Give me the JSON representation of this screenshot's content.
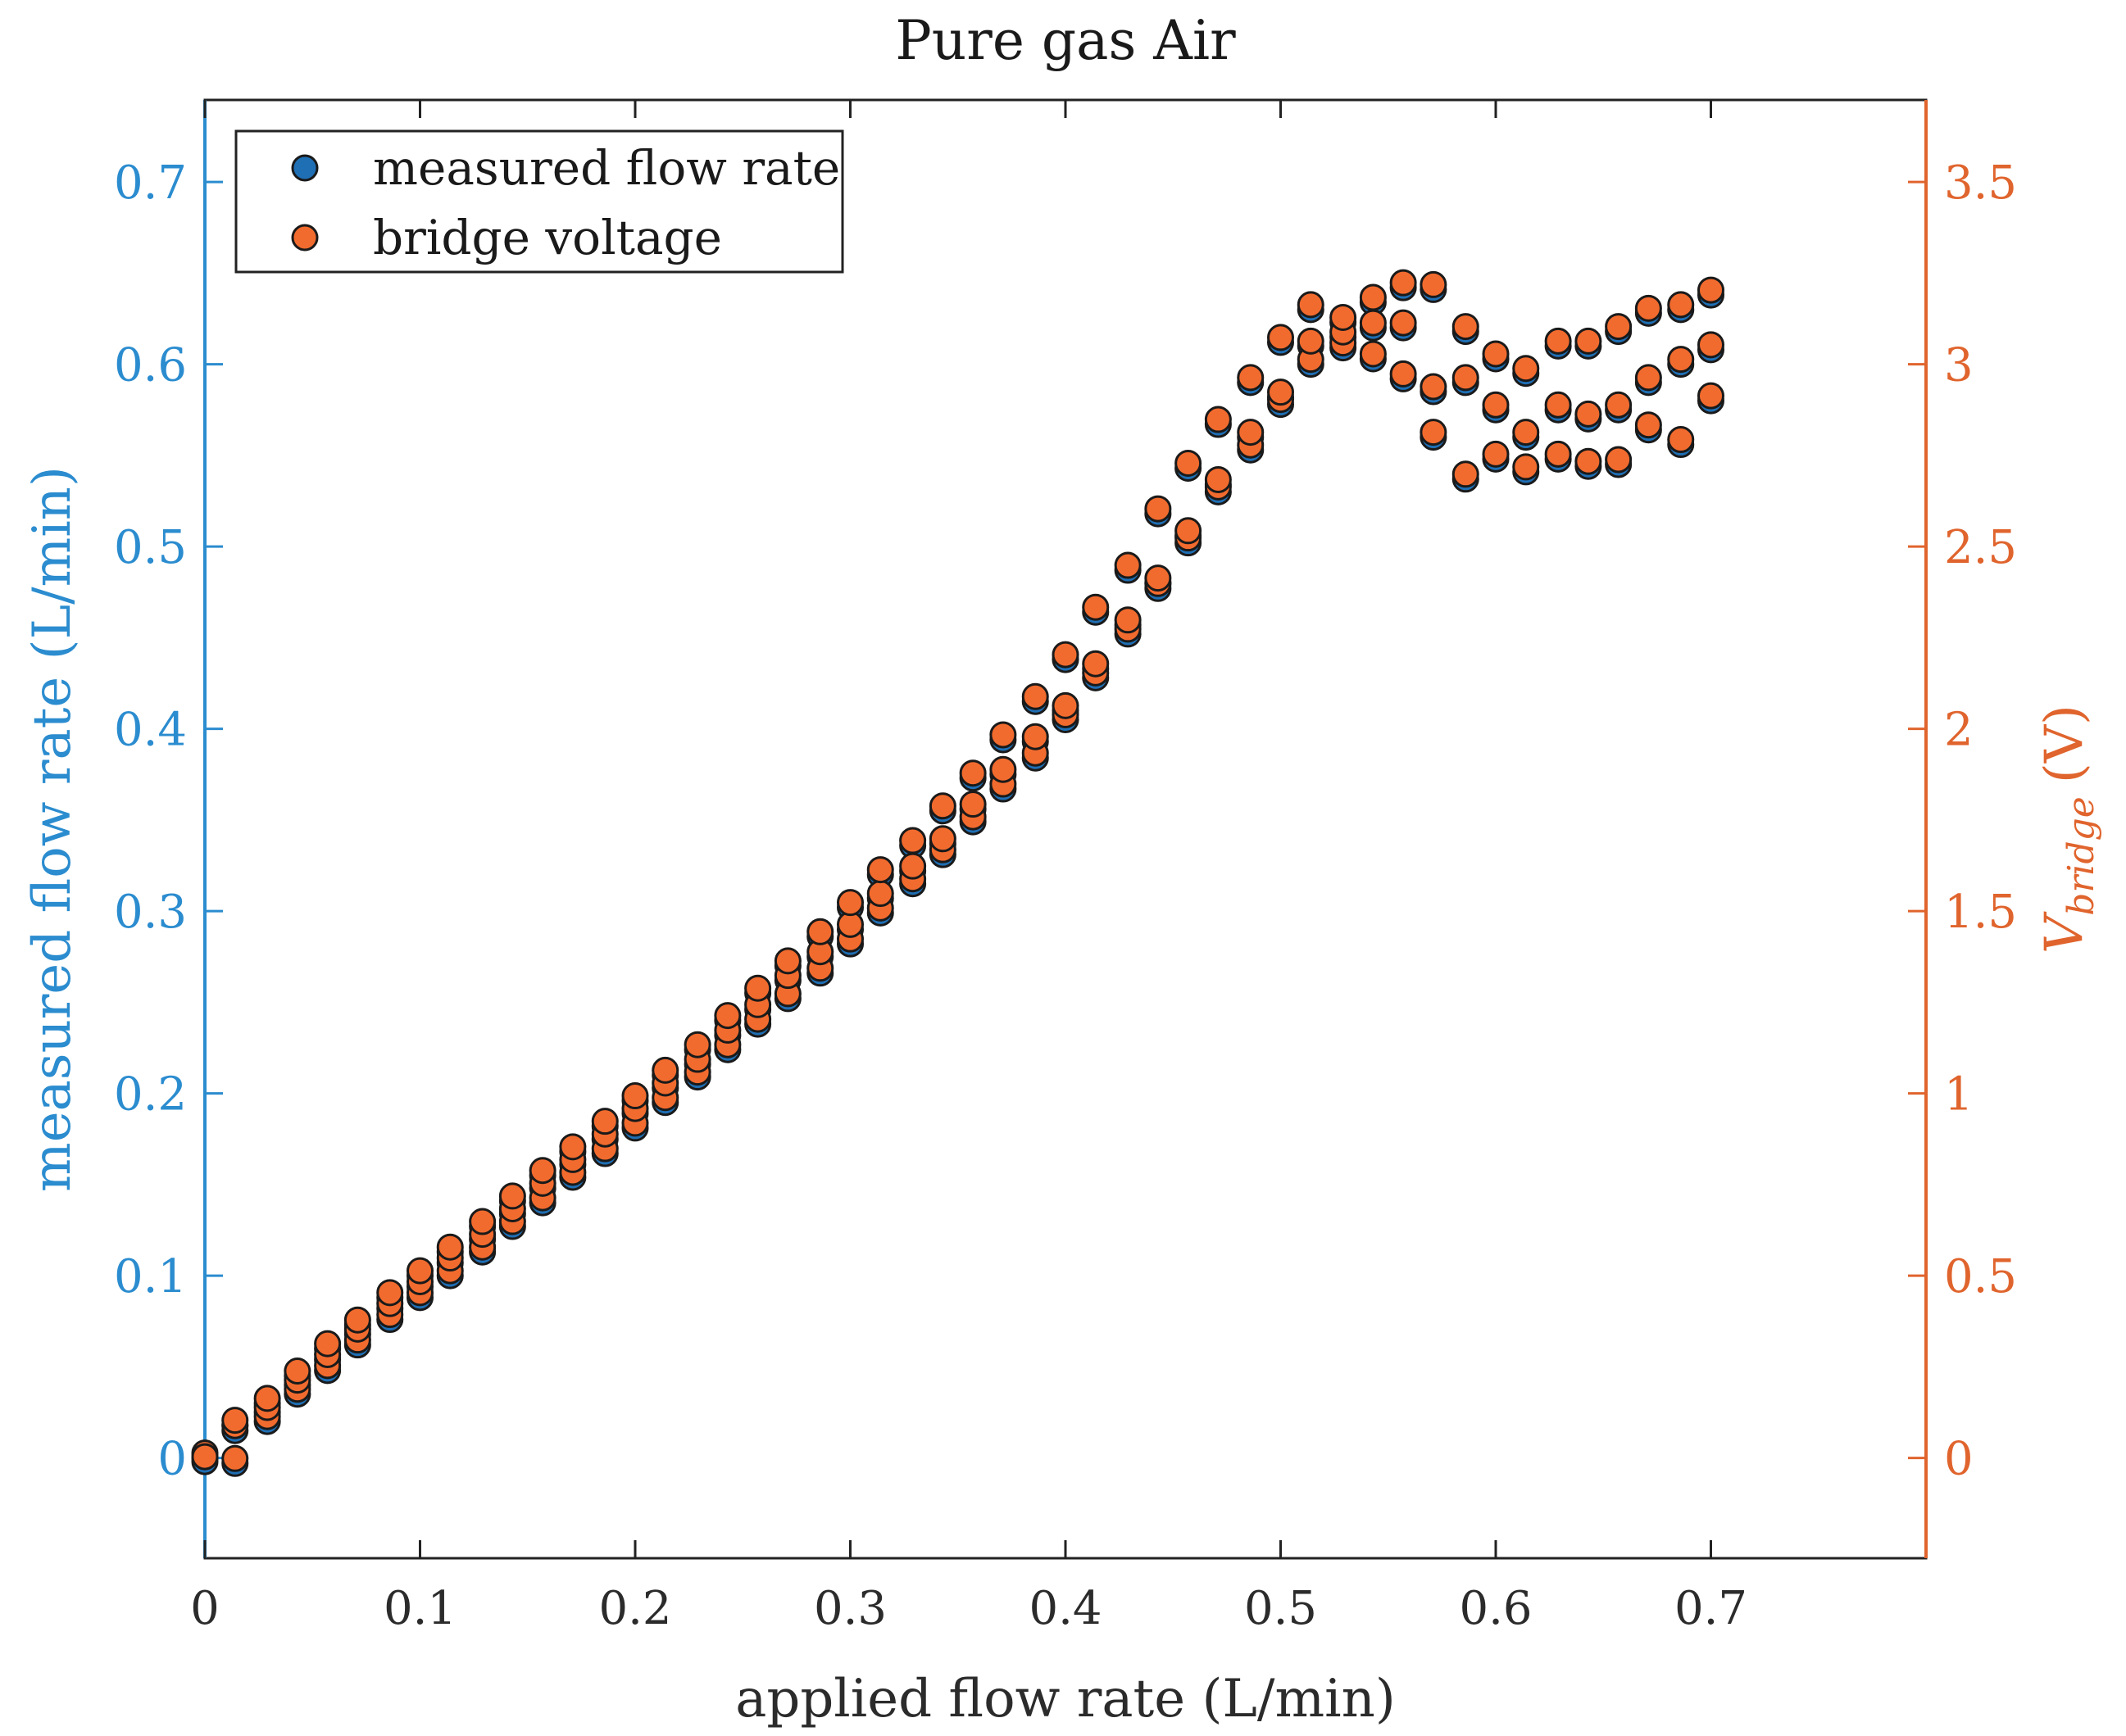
{
  "chart_data": {
    "type": "scatter",
    "title": "Pure gas Air",
    "xlabel": "applied flow rate (L/min)",
    "ylabel_left": "measured flow rate (L/min)",
    "ylabel_right_main": "V",
    "ylabel_right_sub": "bridge",
    "ylabel_right_unit": "(V)",
    "xlim": [
      0,
      0.8
    ],
    "ylim_left": [
      -0.055,
      0.745
    ],
    "ylim_right": [
      -0.275,
      3.725
    ],
    "xticks": [
      "0",
      "0.1",
      "0.2",
      "0.3",
      "0.4",
      "0.5",
      "0.6",
      "0.7"
    ],
    "xtick_values": [
      0,
      0.1,
      0.2,
      0.3,
      0.4,
      0.5,
      0.6,
      0.7
    ],
    "yticks_left": [
      "0",
      "0.1",
      "0.2",
      "0.3",
      "0.4",
      "0.5",
      "0.6",
      "0.7"
    ],
    "ytick_values_left": [
      0,
      0.1,
      0.2,
      0.3,
      0.4,
      0.5,
      0.6,
      0.7
    ],
    "yticks_right": [
      "0",
      "0.5",
      "1",
      "1.5",
      "2",
      "2.5",
      "3",
      "3.5"
    ],
    "ytick_values_right": [
      0,
      0.5,
      1,
      1.5,
      2,
      2.5,
      3,
      3.5
    ],
    "legend_position": "top-left",
    "colors": {
      "left_axis": "#2b8ccf",
      "right_axis": "#e0642d",
      "series_measured": "#1f6fb4",
      "series_bridge": "#f26b2e",
      "marker_edge": "#1a1a1a",
      "axis": "#222222"
    },
    "series": [
      {
        "name": "measured flow rate",
        "axis": "left",
        "x": [
          0,
          0,
          0.014,
          0.014,
          0.014,
          0.029,
          0.029,
          0.029,
          0.043,
          0.043,
          0.043,
          0.057,
          0.057,
          0.057,
          0.071,
          0.071,
          0.071,
          0.086,
          0.086,
          0.086,
          0.1,
          0.1,
          0.1,
          0.114,
          0.114,
          0.114,
          0.129,
          0.129,
          0.129,
          0.143,
          0.143,
          0.143,
          0.157,
          0.157,
          0.157,
          0.171,
          0.171,
          0.171,
          0.186,
          0.186,
          0.186,
          0.2,
          0.2,
          0.2,
          0.214,
          0.214,
          0.214,
          0.229,
          0.229,
          0.229,
          0.243,
          0.243,
          0.243,
          0.257,
          0.257,
          0.257,
          0.271,
          0.271,
          0.271,
          0.286,
          0.286,
          0.286,
          0.3,
          0.3,
          0.3,
          0.314,
          0.314,
          0.314,
          0.329,
          0.329,
          0.329,
          0.343,
          0.343,
          0.343,
          0.357,
          0.357,
          0.357,
          0.371,
          0.371,
          0.371,
          0.386,
          0.386,
          0.386,
          0.4,
          0.4,
          0.4,
          0.414,
          0.414,
          0.414,
          0.429,
          0.429,
          0.429,
          0.443,
          0.443,
          0.443,
          0.457,
          0.457,
          0.457,
          0.471,
          0.471,
          0.471,
          0.486,
          0.486,
          0.486,
          0.5,
          0.5,
          0.5,
          0.514,
          0.514,
          0.514,
          0.529,
          0.529,
          0.529,
          0.543,
          0.543,
          0.543,
          0.557,
          0.557,
          0.557,
          0.571,
          0.571,
          0.571,
          0.586,
          0.586,
          0.586,
          0.6,
          0.6,
          0.6,
          0.614,
          0.614,
          0.614,
          0.629,
          0.629,
          0.629,
          0.643,
          0.643,
          0.643,
          0.657,
          0.657,
          0.657,
          0.671,
          0.671,
          0.671,
          0.686,
          0.686,
          0.686,
          0.7,
          0.7,
          0.7
        ],
        "y": [
          0,
          -0.002,
          -0.003,
          0.015,
          0.018,
          0.02,
          0.025,
          0.03,
          0.035,
          0.04,
          0.045,
          0.048,
          0.054,
          0.06,
          0.062,
          0.068,
          0.073,
          0.076,
          0.082,
          0.088,
          0.088,
          0.094,
          0.1,
          0.1,
          0.107,
          0.113,
          0.113,
          0.12,
          0.127,
          0.127,
          0.134,
          0.141,
          0.14,
          0.148,
          0.155,
          0.154,
          0.161,
          0.168,
          0.167,
          0.175,
          0.182,
          0.181,
          0.189,
          0.196,
          0.195,
          0.203,
          0.21,
          0.209,
          0.216,
          0.224,
          0.224,
          0.232,
          0.24,
          0.238,
          0.246,
          0.255,
          0.252,
          0.262,
          0.27,
          0.266,
          0.275,
          0.286,
          0.282,
          0.29,
          0.302,
          0.299,
          0.307,
          0.32,
          0.315,
          0.322,
          0.336,
          0.331,
          0.337,
          0.355,
          0.349,
          0.356,
          0.373,
          0.367,
          0.375,
          0.394,
          0.384,
          0.393,
          0.415,
          0.405,
          0.41,
          0.438,
          0.428,
          0.433,
          0.464,
          0.452,
          0.457,
          0.487,
          0.477,
          0.48,
          0.518,
          0.502,
          0.506,
          0.543,
          0.53,
          0.534,
          0.567,
          0.553,
          0.56,
          0.59,
          0.578,
          0.582,
          0.612,
          0.6,
          0.61,
          0.63,
          0.609,
          0.615,
          0.623,
          0.603,
          0.62,
          0.634,
          0.592,
          0.62,
          0.642,
          0.56,
          0.585,
          0.641,
          0.537,
          0.59,
          0.618,
          0.548,
          0.575,
          0.603,
          0.541,
          0.56,
          0.595,
          0.548,
          0.575,
          0.61,
          0.544,
          0.57,
          0.61,
          0.545,
          0.575,
          0.618,
          0.564,
          0.59,
          0.628,
          0.556,
          0.6,
          0.63,
          0.58,
          0.608,
          0.638
        ]
      },
      {
        "name": "bridge voltage",
        "axis": "right",
        "x": [
          0,
          0,
          0.014,
          0.014,
          0.014,
          0.029,
          0.029,
          0.029,
          0.043,
          0.043,
          0.043,
          0.057,
          0.057,
          0.057,
          0.071,
          0.071,
          0.071,
          0.086,
          0.086,
          0.086,
          0.1,
          0.1,
          0.1,
          0.114,
          0.114,
          0.114,
          0.129,
          0.129,
          0.129,
          0.143,
          0.143,
          0.143,
          0.157,
          0.157,
          0.157,
          0.171,
          0.171,
          0.171,
          0.186,
          0.186,
          0.186,
          0.2,
          0.2,
          0.2,
          0.214,
          0.214,
          0.214,
          0.229,
          0.229,
          0.229,
          0.243,
          0.243,
          0.243,
          0.257,
          0.257,
          0.257,
          0.271,
          0.271,
          0.271,
          0.286,
          0.286,
          0.286,
          0.3,
          0.3,
          0.3,
          0.314,
          0.314,
          0.314,
          0.329,
          0.329,
          0.329,
          0.343,
          0.343,
          0.343,
          0.357,
          0.357,
          0.357,
          0.371,
          0.371,
          0.371,
          0.386,
          0.386,
          0.386,
          0.4,
          0.4,
          0.4,
          0.414,
          0.414,
          0.414,
          0.429,
          0.429,
          0.429,
          0.443,
          0.443,
          0.443,
          0.457,
          0.457,
          0.457,
          0.471,
          0.471,
          0.471,
          0.486,
          0.486,
          0.486,
          0.5,
          0.5,
          0.5,
          0.514,
          0.514,
          0.514,
          0.529,
          0.529,
          0.529,
          0.543,
          0.543,
          0.543,
          0.557,
          0.557,
          0.557,
          0.571,
          0.571,
          0.571,
          0.586,
          0.586,
          0.586,
          0.6,
          0.6,
          0.6,
          0.614,
          0.614,
          0.614,
          0.629,
          0.629,
          0.629,
          0.643,
          0.643,
          0.643,
          0.657,
          0.657,
          0.657,
          0.671,
          0.671,
          0.671,
          0.686,
          0.686,
          0.686,
          0.7,
          0.7,
          0.7
        ],
        "y": [
          0,
          -0.01,
          -0.015,
          0.075,
          0.09,
          0.1,
          0.125,
          0.15,
          0.175,
          0.2,
          0.225,
          0.24,
          0.27,
          0.3,
          0.31,
          0.34,
          0.365,
          0.38,
          0.41,
          0.44,
          0.44,
          0.47,
          0.5,
          0.5,
          0.535,
          0.565,
          0.565,
          0.6,
          0.635,
          0.635,
          0.67,
          0.705,
          0.7,
          0.74,
          0.775,
          0.77,
          0.805,
          0.84,
          0.835,
          0.875,
          0.91,
          0.905,
          0.945,
          0.98,
          0.975,
          1.015,
          1.05,
          1.045,
          1.08,
          1.12,
          1.12,
          1.16,
          1.2,
          1.19,
          1.23,
          1.275,
          1.26,
          1.31,
          1.35,
          1.33,
          1.375,
          1.43,
          1.41,
          1.45,
          1.51,
          1.495,
          1.535,
          1.6,
          1.575,
          1.61,
          1.68,
          1.655,
          1.685,
          1.775,
          1.745,
          1.78,
          1.865,
          1.835,
          1.875,
          1.97,
          1.92,
          1.965,
          2.075,
          2.025,
          2.05,
          2.19,
          2.14,
          2.165,
          2.32,
          2.26,
          2.285,
          2.435,
          2.385,
          2.4,
          2.59,
          2.51,
          2.53,
          2.715,
          2.65,
          2.67,
          2.835,
          2.765,
          2.8,
          2.95,
          2.89,
          2.91,
          3.06,
          3.0,
          3.05,
          3.15,
          3.045,
          3.075,
          3.115,
          3.015,
          3.1,
          3.17,
          2.96,
          3.1,
          3.21,
          2.8,
          2.925,
          3.205,
          2.685,
          2.95,
          3.09,
          2.74,
          2.875,
          3.015,
          2.705,
          2.8,
          2.975,
          2.74,
          2.875,
          3.05,
          2.72,
          2.85,
          3.05,
          2.725,
          2.875,
          3.09,
          2.82,
          2.95,
          3.14,
          2.78,
          3.0,
          3.15,
          2.9,
          3.04,
          3.19
        ]
      }
    ]
  }
}
